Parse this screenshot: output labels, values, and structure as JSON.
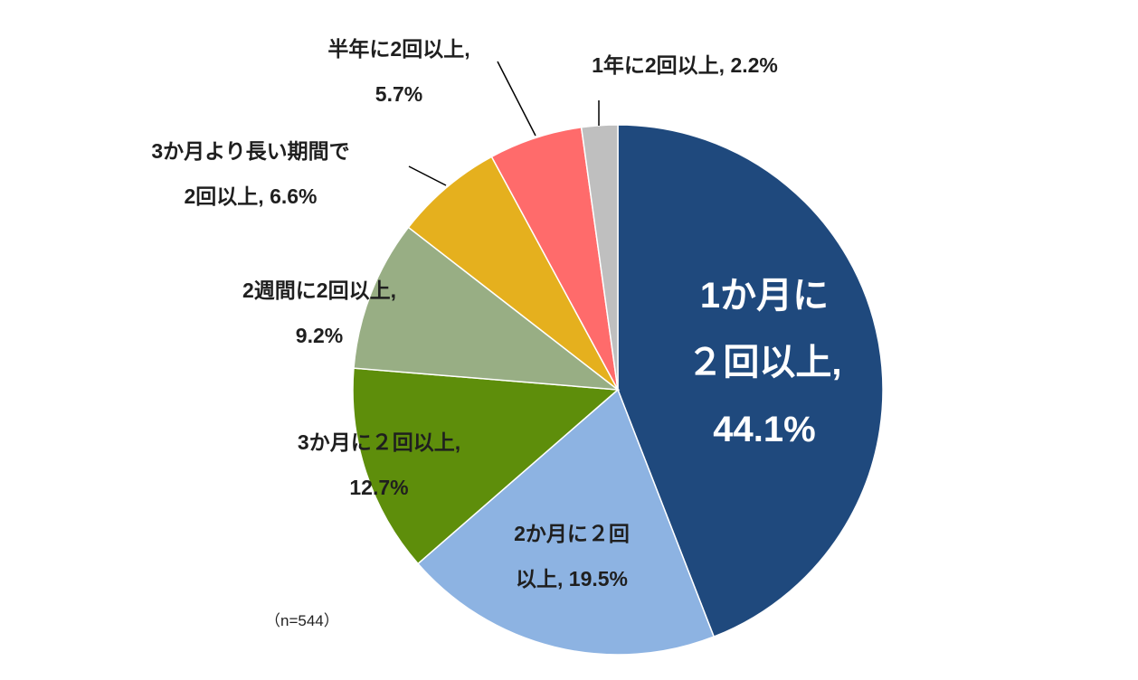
{
  "chart_data": {
    "type": "pie",
    "start_angle_deg": 0,
    "direction": "clockwise",
    "slices": [
      {
        "label_lines": [
          "1か月に",
          "２回以上,",
          "44.1%"
        ],
        "value": 44.1,
        "color": "#1f497d"
      },
      {
        "label_lines": [
          "2か月に２回",
          "以上, 19.5%"
        ],
        "value": 19.5,
        "color": "#8db3e2"
      },
      {
        "label_lines": [
          "3か月に２回以上,",
          "12.7%"
        ],
        "value": 12.7,
        "color": "#5e8e0b"
      },
      {
        "label_lines": [
          "2週間に2回以上,",
          "9.2%"
        ],
        "value": 9.2,
        "color": "#98ae84"
      },
      {
        "label_lines": [
          "3か月より長い期間で",
          "2回以上, 6.6%"
        ],
        "value": 6.6,
        "color": "#e5b01e"
      },
      {
        "label_lines": [
          "半年に2回以上,",
          "5.7%"
        ],
        "value": 5.7,
        "color": "#ff6b6b"
      },
      {
        "label_lines": [
          "1年に2回以上, 2.2%"
        ],
        "value": 2.2,
        "color": "#bfbfbf"
      }
    ]
  },
  "note": "（n=544）"
}
